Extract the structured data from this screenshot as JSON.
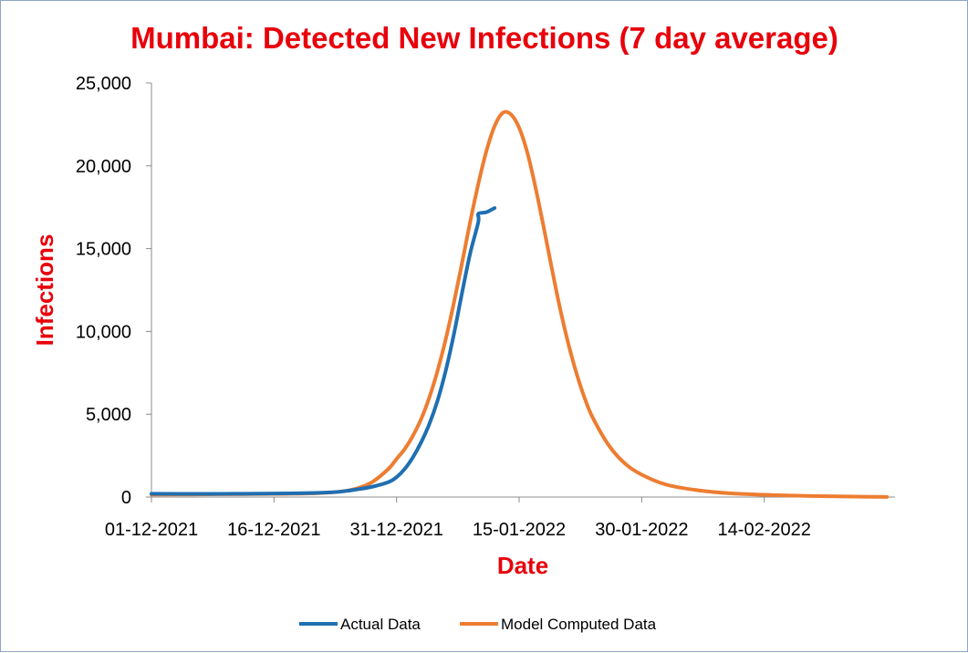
{
  "chart_data": {
    "type": "line",
    "title": "Mumbai: Detected New Infections (7 day average)",
    "xlabel": "Date",
    "ylabel": "Infections",
    "x_start_date": "01-12-2021",
    "x_tick_labels": [
      "01-12-2021",
      "16-12-2021",
      "31-12-2021",
      "15-01-2022",
      "30-01-2022",
      "14-02-2022"
    ],
    "y_tick_labels": [
      "0",
      "5,000",
      "10,000",
      "15,000",
      "20,000",
      "25,000"
    ],
    "ylim": [
      0,
      25000
    ],
    "grid": false,
    "legend_position": "bottom",
    "series": [
      {
        "name": "Actual Data",
        "color": "#1f6fb2",
        "points": [
          [
            "01-12-2021",
            200
          ],
          [
            "06-12-2021",
            190
          ],
          [
            "11-12-2021",
            200
          ],
          [
            "16-12-2021",
            210
          ],
          [
            "21-12-2021",
            250
          ],
          [
            "24-12-2021",
            320
          ],
          [
            "26-12-2021",
            450
          ],
          [
            "28-12-2021",
            620
          ],
          [
            "30-12-2021",
            900
          ],
          [
            "31-12-2021",
            1200
          ],
          [
            "01-01-2022",
            1700
          ],
          [
            "02-01-2022",
            2400
          ],
          [
            "03-01-2022",
            3300
          ],
          [
            "04-01-2022",
            4400
          ],
          [
            "05-01-2022",
            5800
          ],
          [
            "06-01-2022",
            7600
          ],
          [
            "07-01-2022",
            9800
          ],
          [
            "08-01-2022",
            12300
          ],
          [
            "09-01-2022",
            14700
          ],
          [
            "10-01-2022",
            16600
          ],
          [
            "10-01-2022",
            17100
          ],
          [
            "11-01-2022",
            17200
          ],
          [
            "12-01-2022",
            17450
          ]
        ]
      },
      {
        "name": "Model Computed Data",
        "color": "#ed7d31",
        "points": [
          [
            "01-12-2021",
            150
          ],
          [
            "06-12-2021",
            160
          ],
          [
            "11-12-2021",
            175
          ],
          [
            "16-12-2021",
            190
          ],
          [
            "21-12-2021",
            230
          ],
          [
            "24-12-2021",
            320
          ],
          [
            "26-12-2021",
            500
          ],
          [
            "28-12-2021",
            900
          ],
          [
            "30-12-2021",
            1700
          ],
          [
            "31-12-2021",
            2300
          ],
          [
            "01-01-2022",
            2900
          ],
          [
            "02-01-2022",
            3700
          ],
          [
            "03-01-2022",
            4700
          ],
          [
            "04-01-2022",
            6000
          ],
          [
            "05-01-2022",
            7600
          ],
          [
            "06-01-2022",
            9500
          ],
          [
            "07-01-2022",
            11700
          ],
          [
            "08-01-2022",
            14100
          ],
          [
            "09-01-2022",
            16600
          ],
          [
            "10-01-2022",
            18900
          ],
          [
            "11-01-2022",
            20900
          ],
          [
            "12-01-2022",
            22400
          ],
          [
            "13-01-2022",
            23200
          ],
          [
            "14-01-2022",
            23100
          ],
          [
            "15-01-2022",
            22300
          ],
          [
            "16-01-2022",
            20800
          ],
          [
            "17-01-2022",
            18700
          ],
          [
            "18-01-2022",
            16300
          ],
          [
            "19-01-2022",
            13800
          ],
          [
            "20-01-2022",
            11400
          ],
          [
            "21-01-2022",
            9300
          ],
          [
            "22-01-2022",
            7500
          ],
          [
            "23-01-2022",
            6000
          ],
          [
            "24-01-2022",
            4800
          ],
          [
            "26-01-2022",
            3100
          ],
          [
            "28-01-2022",
            2000
          ],
          [
            "30-01-2022",
            1350
          ],
          [
            "02-02-2022",
            750
          ],
          [
            "06-02-2022",
            400
          ],
          [
            "10-02-2022",
            220
          ],
          [
            "15-02-2022",
            120
          ],
          [
            "20-02-2022",
            60
          ],
          [
            "25-02-2022",
            25
          ],
          [
            "01-03-2022",
            10
          ]
        ]
      }
    ]
  }
}
